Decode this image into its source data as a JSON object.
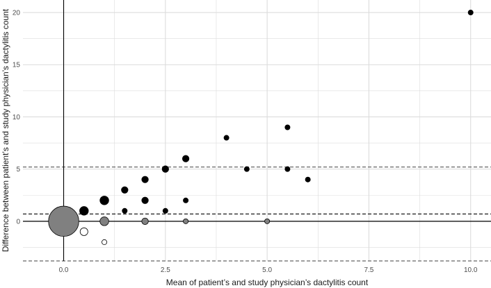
{
  "chart_data": {
    "type": "scatter",
    "title": "",
    "xlabel": "Mean of patient’s and study physician’s dactylitis count",
    "ylabel": "Difference between patient’s and study physician’s dactylitis count",
    "xlim": [
      -1.0,
      10.5
    ],
    "ylim": [
      -3.8,
      21.2
    ],
    "x_ticks": [
      0.0,
      2.5,
      5.0,
      7.5,
      10.0
    ],
    "x_tick_labels": [
      "0.0",
      "2.5",
      "5.0",
      "7.5",
      "10.0"
    ],
    "y_ticks": [
      0,
      5,
      10,
      15,
      20
    ],
    "y_tick_labels": [
      "0",
      "5",
      "10",
      "15",
      "20"
    ],
    "grid": true,
    "reference_lines": [
      {
        "name": "mean-difference",
        "y": 0.7,
        "style": "dashed",
        "color": "#000000"
      },
      {
        "name": "upper-limit-of-agreement",
        "y": 5.2,
        "style": "dashed",
        "color": "#666666"
      },
      {
        "name": "lower-limit-of-agreement",
        "y": -3.8,
        "style": "dashed",
        "color": "#666666"
      },
      {
        "name": "zero-line",
        "y": 0,
        "style": "solid",
        "color": "#000000"
      }
    ],
    "size_encoding": "relative frequency of observations",
    "colors": {
      "black": "#000000",
      "grey": "#808080",
      "white": "#ffffff",
      "outline": "#000000",
      "grid": "#dcdcdc"
    },
    "points": [
      {
        "x": 0,
        "y": 0,
        "size": 60,
        "fill": "grey"
      },
      {
        "x": 0.5,
        "y": 1,
        "size": 4,
        "fill": "black"
      },
      {
        "x": 0.5,
        "y": -1,
        "size": 3,
        "fill": "white"
      },
      {
        "x": 1,
        "y": 2,
        "size": 4,
        "fill": "black"
      },
      {
        "x": 1,
        "y": 0,
        "size": 4,
        "fill": "grey"
      },
      {
        "x": 1,
        "y": -2,
        "size": 1,
        "fill": "white"
      },
      {
        "x": 1.5,
        "y": 3,
        "size": 2,
        "fill": "black"
      },
      {
        "x": 1.5,
        "y": 1,
        "size": 1,
        "fill": "black"
      },
      {
        "x": 2,
        "y": 4,
        "size": 2,
        "fill": "black"
      },
      {
        "x": 2,
        "y": 2,
        "size": 2,
        "fill": "black"
      },
      {
        "x": 2,
        "y": 0,
        "size": 2,
        "fill": "grey"
      },
      {
        "x": 2.5,
        "y": 5,
        "size": 2,
        "fill": "black"
      },
      {
        "x": 2.5,
        "y": 1,
        "size": 1,
        "fill": "black"
      },
      {
        "x": 3,
        "y": 6,
        "size": 2,
        "fill": "black"
      },
      {
        "x": 3,
        "y": 2,
        "size": 1,
        "fill": "black"
      },
      {
        "x": 3,
        "y": 0,
        "size": 1,
        "fill": "grey"
      },
      {
        "x": 4,
        "y": 8,
        "size": 1,
        "fill": "black"
      },
      {
        "x": 4.5,
        "y": 5,
        "size": 1,
        "fill": "black"
      },
      {
        "x": 5,
        "y": 0,
        "size": 1,
        "fill": "grey"
      },
      {
        "x": 5.5,
        "y": 9,
        "size": 1,
        "fill": "black"
      },
      {
        "x": 5.5,
        "y": 5,
        "size": 1,
        "fill": "black"
      },
      {
        "x": 6,
        "y": 4,
        "size": 1,
        "fill": "black"
      },
      {
        "x": 10,
        "y": 20,
        "size": 1,
        "fill": "black"
      }
    ]
  }
}
